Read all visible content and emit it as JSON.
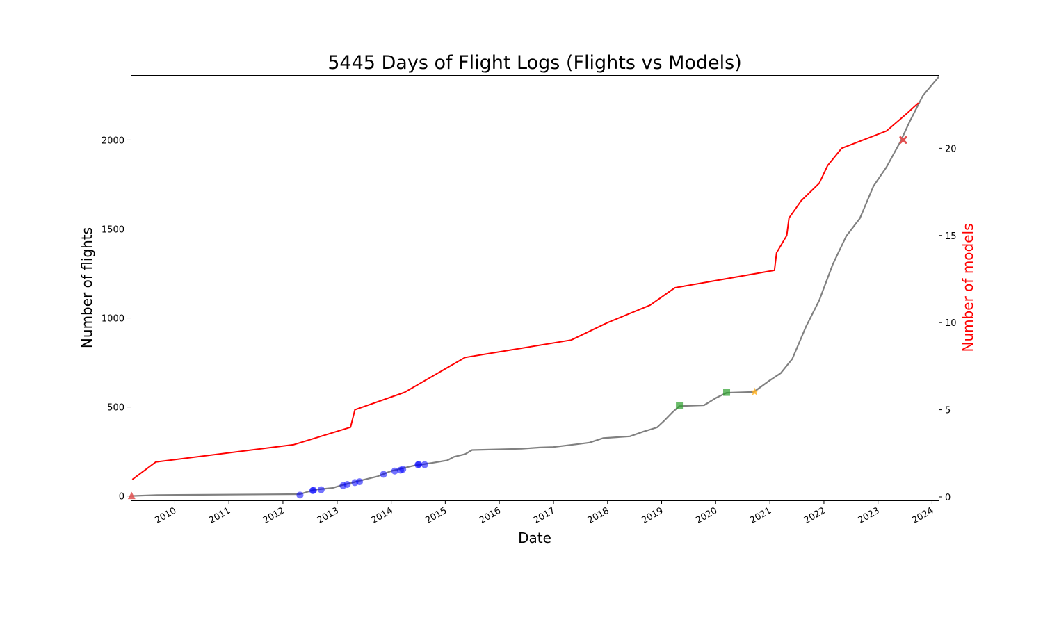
{
  "chart_data": {
    "type": "line",
    "title": "5445 Days of Flight Logs (Flights vs Models)",
    "xlabel": "Date",
    "ylabel_left": "Number of flights",
    "ylabel_right": "Number of models",
    "x_range": [
      "2009-03-09",
      "2024-02-15"
    ],
    "ylim_left": [
      -25,
      2365
    ],
    "ylim_right": [
      -0.2,
      24.2
    ],
    "yticks_left": [
      0,
      500,
      1000,
      1500,
      2000
    ],
    "yticks_right": [
      0,
      5,
      10,
      15,
      20
    ],
    "xticks": [
      "2010",
      "2011",
      "2012",
      "2013",
      "2014",
      "2015",
      "2016",
      "2017",
      "2018",
      "2019",
      "2020",
      "2021",
      "2022",
      "2023",
      "2024"
    ],
    "grid": "horizontal dashed",
    "colors": {
      "flights": "#808080",
      "models": "#ff0000",
      "right_axis_label": "#ff0000"
    },
    "series": [
      {
        "axis": "left",
        "color": "#808080",
        "points": [
          [
            "2009-03-15",
            0
          ],
          [
            "2009-09-01",
            5
          ],
          [
            "2012-04-25",
            10
          ],
          [
            "2012-08-01",
            35
          ],
          [
            "2012-12-01",
            45
          ],
          [
            "2013-02-01",
            60
          ],
          [
            "2013-06-01",
            85
          ],
          [
            "2013-10-01",
            110
          ],
          [
            "2014-01-01",
            140
          ],
          [
            "2014-06-01",
            170
          ],
          [
            "2014-10-01",
            185
          ],
          [
            "2015-01-15",
            200
          ],
          [
            "2015-03-01",
            220
          ],
          [
            "2015-05-15",
            235
          ],
          [
            "2015-07-01",
            258
          ],
          [
            "2016-06-01",
            265
          ],
          [
            "2016-10-01",
            272
          ],
          [
            "2017-01-01",
            275
          ],
          [
            "2017-06-01",
            290
          ],
          [
            "2017-09-01",
            300
          ],
          [
            "2017-12-01",
            325
          ],
          [
            "2018-06-01",
            335
          ],
          [
            "2018-09-01",
            362
          ],
          [
            "2018-12-01",
            385
          ],
          [
            "2019-01-15",
            420
          ],
          [
            "2019-03-15",
            470
          ],
          [
            "2019-05-01",
            505
          ],
          [
            "2019-10-15",
            510
          ],
          [
            "2020-01-01",
            550
          ],
          [
            "2020-03-15",
            580
          ],
          [
            "2020-09-15",
            585
          ],
          [
            "2021-01-01",
            650
          ],
          [
            "2021-03-15",
            690
          ],
          [
            "2021-06-01",
            770
          ],
          [
            "2021-09-01",
            950
          ],
          [
            "2021-12-01",
            1100
          ],
          [
            "2022-03-01",
            1300
          ],
          [
            "2022-06-01",
            1460
          ],
          [
            "2022-09-01",
            1560
          ],
          [
            "2022-12-01",
            1740
          ],
          [
            "2023-03-01",
            1850
          ],
          [
            "2023-06-01",
            1990
          ],
          [
            "2023-08-01",
            2100
          ],
          [
            "2023-11-01",
            2250
          ],
          [
            "2024-02-15",
            2355
          ]
        ]
      },
      {
        "axis": "right",
        "color": "#ff0000",
        "points": [
          [
            "2009-03-20",
            1
          ],
          [
            "2009-08-25",
            2
          ],
          [
            "2012-03-15",
            3
          ],
          [
            "2013-04-01",
            4
          ],
          [
            "2013-05-01",
            5
          ],
          [
            "2014-04-01",
            6
          ],
          [
            "2015-05-15",
            8
          ],
          [
            "2017-05-01",
            9
          ],
          [
            "2018-01-01",
            10
          ],
          [
            "2018-10-15",
            11
          ],
          [
            "2019-04-01",
            12
          ],
          [
            "2021-02-01",
            13
          ],
          [
            "2021-02-15",
            14
          ],
          [
            "2021-04-25",
            15
          ],
          [
            "2021-05-10",
            16
          ],
          [
            "2021-08-01",
            17
          ],
          [
            "2021-12-01",
            18
          ],
          [
            "2022-01-25",
            19
          ],
          [
            "2022-05-01",
            20
          ],
          [
            "2023-03-01",
            21
          ],
          [
            "2023-07-15",
            22
          ],
          [
            "2023-10-01",
            22.6
          ]
        ]
      }
    ],
    "markers": [
      {
        "shape": "triangle",
        "color": "#e05050",
        "date": "2009-03-15",
        "y": 0
      },
      {
        "shape": "circle",
        "color": "#0000ff",
        "date": "2012-04-25",
        "y": 5
      },
      {
        "shape": "circle",
        "color": "#0000ff",
        "date": "2012-07-20",
        "y": 30
      },
      {
        "shape": "circle",
        "color": "#0000ff",
        "date": "2012-07-25",
        "y": 32
      },
      {
        "shape": "circle",
        "color": "#0000ff",
        "date": "2012-09-15",
        "y": 35
      },
      {
        "shape": "circle",
        "color": "#0000ff",
        "date": "2013-02-10",
        "y": 58
      },
      {
        "shape": "circle",
        "color": "#0000ff",
        "date": "2013-03-10",
        "y": 65
      },
      {
        "shape": "circle",
        "color": "#0000ff",
        "date": "2013-05-01",
        "y": 75
      },
      {
        "shape": "circle",
        "color": "#0000ff",
        "date": "2013-06-01",
        "y": 80
      },
      {
        "shape": "circle",
        "color": "#0000ff",
        "date": "2013-11-10",
        "y": 122
      },
      {
        "shape": "circle",
        "color": "#0000ff",
        "date": "2014-01-25",
        "y": 140
      },
      {
        "shape": "circle",
        "color": "#0000ff",
        "date": "2014-03-05",
        "y": 145
      },
      {
        "shape": "circle",
        "color": "#0000ff",
        "date": "2014-03-20",
        "y": 150
      },
      {
        "shape": "circle",
        "color": "#0000ff",
        "date": "2014-07-01",
        "y": 175
      },
      {
        "shape": "circle",
        "color": "#0000ff",
        "date": "2014-07-05",
        "y": 178
      },
      {
        "shape": "circle",
        "color": "#0000ff",
        "date": "2014-08-15",
        "y": 176
      },
      {
        "shape": "square",
        "color": "#2ca02c",
        "date": "2019-05-01",
        "y": 508
      },
      {
        "shape": "square",
        "color": "#2ca02c",
        "date": "2020-03-15",
        "y": 582
      },
      {
        "shape": "star",
        "color": "#ffb020",
        "date": "2020-09-20",
        "y": 585
      },
      {
        "shape": "x",
        "color": "#e05050",
        "date": "2023-06-20",
        "y": 2000
      }
    ]
  }
}
